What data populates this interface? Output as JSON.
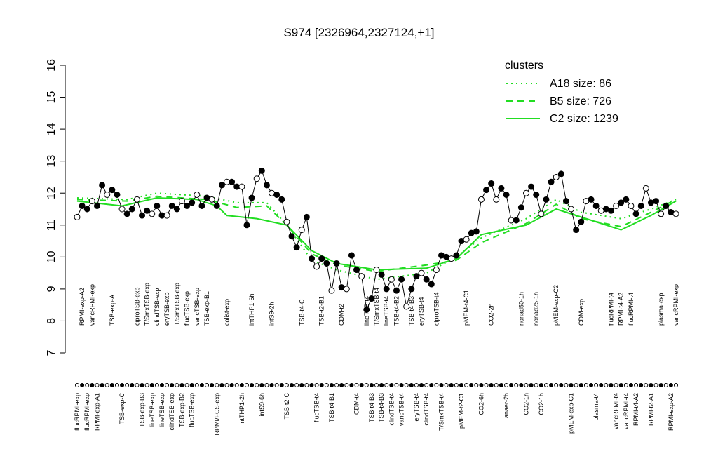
{
  "chart_data": {
    "type": "line",
    "title": "S974 [2326964,2327124,+1]",
    "ylim": [
      7,
      16
    ],
    "yticks": [
      7,
      8,
      9,
      10,
      11,
      12,
      13,
      14,
      15,
      16
    ],
    "color": "#000000",
    "categories": [
      "flucRPMI-exp",
      "RPMI-exp-A2",
      "flucRPMI-exp",
      "vancRPMI-exp",
      "RPMI-exp-A1",
      null,
      null,
      "TSB-exp-A",
      null,
      "TSB-exp-C",
      null,
      null,
      "ciproTSB-exp",
      "TSB-exp-B3",
      "T/SmxTSB-exp",
      "lineTSB-exp",
      "clindTSB-exp",
      "lineTSB-exp",
      "eryTSB-exp",
      "clindTSB-exp",
      "T/SmxTSB-exp",
      "TSB-exp-B2",
      "flucTSB-exp",
      "flucTSB-exp",
      "vancTSB-exp",
      null,
      "TSB-exp-B1",
      null,
      "RPMI/FCS-exp",
      null,
      "colist-exp",
      null,
      null,
      "intTHP1-2h",
      null,
      "intTHP1-6h",
      null,
      "intS9-6h",
      null,
      "intS9-2h",
      null,
      null,
      "TSB-t2-C",
      null,
      null,
      "TSB-t4-C",
      null,
      null,
      "flucTSB-t4",
      "TSB-t2-B1",
      null,
      "TSB-t4-B1",
      null,
      "CDM-t2",
      null,
      null,
      "CDM-t4",
      null,
      "lineTSB-t4",
      "TSB-t4-B3",
      "T/SmxTSB-t4",
      "TSB-t4-B3",
      "lineTSB-t4",
      "clindTSB-t4",
      "TSB-t4-B2",
      "vancTSB-t4",
      null,
      "TSB-t4-B3",
      "eryTSB-t4",
      "eryTSB-t4",
      "clindTSB-t4",
      null,
      "ciproTSB-t4",
      "T/SmxTSB-t4",
      null,
      null,
      null,
      "pMEM-t2-C1",
      "pMEM-t4-C1",
      null,
      null,
      "CO2-6h",
      null,
      "CO2-2h",
      null,
      null,
      "anaer-2h",
      null,
      null,
      "nonad50-1h",
      "CO2-1h",
      null,
      "nonad25-1h",
      "CO2-1h",
      null,
      null,
      "pMEM-exp-C2",
      null,
      null,
      "pMEM-exp-C1",
      null,
      "CDM-exp",
      null,
      null,
      "plasma-t4",
      null,
      null,
      "flucRPMI-t4",
      "vancRPMI-t4",
      "RPMI-t4-A2",
      "vancRPMI-t4",
      "flucRPMI-t4",
      "RPMI-t4-A2",
      null,
      null,
      "RPMI-t2-A1",
      null,
      "plasma-exp",
      null,
      "RPMI-exp-A2",
      "vancRPMI-exp"
    ],
    "label_side": [
      "bottom",
      "top",
      "bottom",
      "top",
      "bottom",
      null,
      null,
      "top",
      null,
      "bottom",
      null,
      null,
      "top",
      "bottom",
      "top",
      "bottom",
      "top",
      "bottom",
      "top",
      "bottom",
      "top",
      "bottom",
      "top",
      "bottom",
      "top",
      null,
      "top",
      null,
      "bottom",
      null,
      "top",
      null,
      null,
      "bottom",
      null,
      "top",
      null,
      "bottom",
      null,
      "top",
      null,
      null,
      "bottom",
      null,
      null,
      "top",
      null,
      null,
      "bottom",
      "top",
      null,
      "bottom",
      null,
      "top",
      null,
      null,
      "bottom",
      null,
      "top",
      "bottom",
      "top",
      "bottom",
      "top",
      "bottom",
      "top",
      "bottom",
      null,
      "top",
      "bottom",
      "top",
      "bottom",
      null,
      "top",
      "bottom",
      null,
      null,
      null,
      "bottom",
      "top",
      null,
      null,
      "bottom",
      null,
      "top",
      null,
      null,
      "bottom",
      null,
      null,
      "top",
      "bottom",
      null,
      "top",
      "bottom",
      null,
      null,
      "top",
      null,
      null,
      "bottom",
      null,
      "top",
      null,
      null,
      "bottom",
      null,
      null,
      "top",
      "bottom",
      "top",
      "bottom",
      "top",
      "bottom",
      null,
      null,
      "bottom",
      null,
      "top",
      null,
      "bottom",
      "top"
    ],
    "values": [
      11.25,
      11.6,
      11.5,
      11.75,
      11.6,
      12.25,
      11.95,
      12.1,
      11.95,
      11.5,
      11.35,
      11.5,
      11.8,
      11.3,
      11.45,
      11.35,
      11.6,
      11.3,
      11.3,
      11.6,
      11.5,
      11.75,
      11.6,
      11.7,
      11.95,
      11.6,
      11.85,
      11.8,
      11.6,
      12.25,
      12.35,
      12.35,
      12.2,
      12.2,
      11.0,
      11.85,
      12.45,
      12.7,
      12.25,
      12.0,
      11.95,
      11.8,
      11.1,
      10.65,
      10.3,
      10.85,
      11.25,
      9.95,
      9.7,
      9.95,
      9.8,
      8.95,
      9.8,
      9.05,
      9.0,
      10.05,
      9.6,
      9.4,
      8.35,
      8.7,
      9.6,
      9.45,
      9.0,
      9.3,
      8.95,
      9.3,
      8.45,
      9.0,
      9.4,
      9.5,
      9.3,
      9.15,
      9.6,
      10.05,
      10.0,
      9.95,
      10.05,
      10.5,
      10.55,
      10.75,
      10.8,
      11.8,
      12.1,
      12.3,
      11.8,
      12.15,
      11.95,
      11.15,
      11.15,
      11.55,
      12.0,
      12.2,
      11.95,
      11.35,
      11.8,
      12.35,
      12.5,
      12.6,
      11.75,
      11.5,
      10.85,
      11.1,
      11.75,
      11.8,
      11.6,
      11.45,
      11.5,
      11.45,
      11.6,
      11.7,
      11.8,
      11.6,
      11.35,
      11.6,
      12.15,
      11.7,
      11.75,
      11.35,
      11.6,
      11.4,
      11.35
    ],
    "legend_title": "clusters",
    "legend_position": "top-right",
    "clusters": [
      {
        "name": "A18 size: 86",
        "color": "#22dd22",
        "style": "dotted",
        "x": [
          0,
          10,
          16,
          26,
          32,
          38,
          42,
          47,
          52,
          60,
          70,
          76,
          81,
          90,
          96,
          101,
          109,
          115,
          120
        ],
        "values": [
          11.85,
          11.8,
          12.0,
          11.9,
          11.7,
          11.7,
          11.0,
          9.9,
          9.6,
          9.3,
          9.5,
          10.0,
          10.6,
          11.2,
          11.8,
          11.4,
          11.2,
          11.5,
          11.8
        ]
      },
      {
        "name": "B5 size: 726",
        "color": "#22dd22",
        "style": "dashed",
        "x": [
          0,
          10,
          16,
          26,
          32,
          38,
          42,
          47,
          52,
          60,
          70,
          76,
          81,
          90,
          96,
          101,
          109,
          115,
          120
        ],
        "values": [
          11.8,
          11.75,
          11.9,
          11.8,
          11.55,
          11.6,
          11.0,
          10.1,
          9.75,
          9.55,
          9.75,
          9.9,
          10.45,
          11.05,
          11.65,
          11.2,
          10.95,
          11.4,
          11.8
        ]
      },
      {
        "name": "C2 size: 1239",
        "color": "#22dd22",
        "style": "solid",
        "x": [
          0,
          9,
          16,
          24,
          28,
          30,
          36,
          42,
          47,
          52,
          60,
          70,
          76,
          81,
          90,
          96,
          101,
          109,
          115,
          120
        ],
        "values": [
          11.75,
          11.6,
          11.85,
          11.8,
          11.6,
          11.3,
          11.2,
          11.0,
          10.2,
          9.8,
          9.6,
          9.65,
          9.95,
          10.7,
          11.0,
          11.5,
          11.25,
          10.85,
          11.3,
          11.75
        ]
      }
    ]
  }
}
